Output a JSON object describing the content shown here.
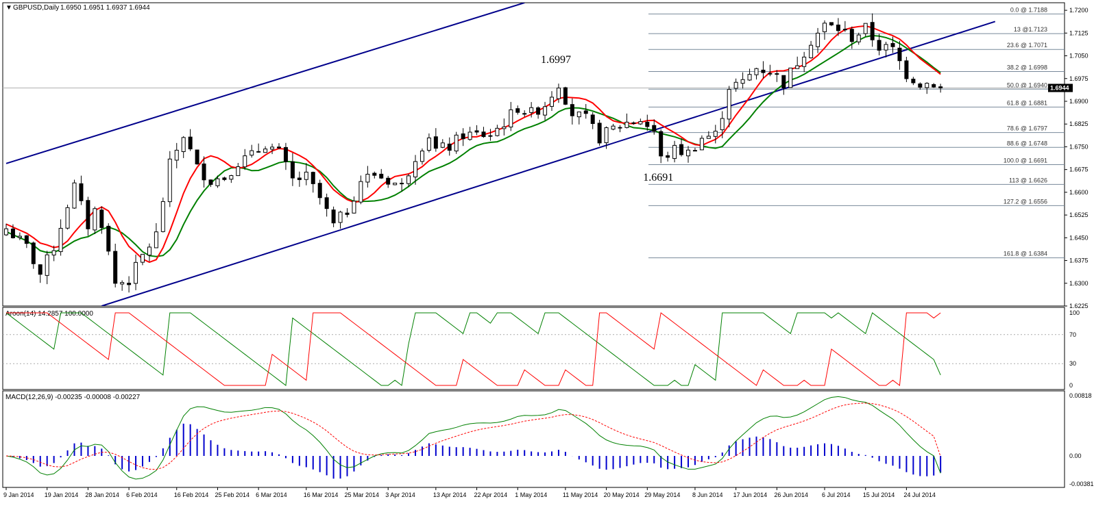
{
  "header": {
    "symbol": "GBPUSD,Daily",
    "ohlc": "1.6950 1.6951 1.6937 1.6944",
    "aroon_label": "Aroon(14) 14.2857 100.0000",
    "macd_label": "MACD(12,26,9) -0.00235 -0.00008 -0.00227"
  },
  "annotations": [
    {
      "text": "1.6997",
      "date_index": 81,
      "price": 1.7026
    },
    {
      "text": "1.6691",
      "date_index": 96,
      "price": 1.6638
    }
  ],
  "current_price_tag": "1.6944",
  "colors": {
    "channel": "#00008b",
    "ma_fast": "#ff0000",
    "ma_slow": "#008000",
    "ma_flat": "#ffff00",
    "aroon_up": "#008000",
    "aroon_down": "#ff0000",
    "macd_line": "#008000",
    "macd_signal": "#ff0000",
    "macd_hist": "#0000cd",
    "fib_line": "#778899"
  },
  "chart_data": {
    "type": "candlestick",
    "title": "GBPUSD,Daily",
    "x_tick_labels": [
      "9 Jan 2014",
      "19 Jan 2014",
      "28 Jan 2014",
      "6 Feb 2014",
      "16 Feb 2014",
      "25 Feb 2014",
      "6 Mar 2014",
      "16 Mar 2014",
      "25 Mar 2014",
      "3 Apr 2014",
      "13 Apr 2014",
      "22 Apr 2014",
      "1 May 2014",
      "11 May 2014",
      "20 May 2014",
      "29 May 2014",
      "8 Jun 2014",
      "17 Jun 2014",
      "26 Jun 2014",
      "6 Jul 2014",
      "15 Jul 2014",
      "24 Jul 2014"
    ],
    "x_tick_bar_index": [
      0,
      6,
      12,
      18,
      25,
      31,
      37,
      44,
      50,
      56,
      63,
      69,
      75,
      82,
      88,
      94,
      101,
      107,
      113,
      120,
      126,
      132
    ],
    "price_axis": {
      "ylim": [
        1.6225,
        1.7225
      ],
      "ticks": [
        "1.7200",
        "1.7125",
        "1.7050",
        "1.6975",
        "1.6900",
        "1.6825",
        "1.6750",
        "1.6675",
        "1.6600",
        "1.6525",
        "1.6450",
        "1.6375",
        "1.6300",
        "1.6225"
      ]
    },
    "fibonacci": [
      {
        "label": "0.0 @ 1.7188",
        "price": 1.7188
      },
      {
        "label": "13 @1.7123",
        "price": 1.7123
      },
      {
        "label": "23.6 @ 1.7071",
        "price": 1.7071
      },
      {
        "label": "38.2 @ 1.6998",
        "price": 1.6998
      },
      {
        "label": "50.0 @ 1.6940",
        "price": 1.694
      },
      {
        "label": "61.8 @ 1.6881",
        "price": 1.6881
      },
      {
        "label": "78.6 @ 1.6797",
        "price": 1.6797
      },
      {
        "label": "88.6 @ 1.6748",
        "price": 1.6748
      },
      {
        "label": "100.0 @ 1.6691",
        "price": 1.6691
      },
      {
        "label": "113 @ 1.6626",
        "price": 1.6626
      },
      {
        "label": "127.2 @ 1.6556",
        "price": 1.6556
      },
      {
        "label": "161.8 @ 1.6384",
        "price": 1.6384
      }
    ],
    "current_price": 1.6944,
    "channel": {
      "lower": {
        "i1": 14,
        "p1": 1.6225,
        "i2": 145,
        "p2": 1.7163
      },
      "upper": {
        "i1": 0,
        "p1": 1.6695,
        "i2": 76,
        "p2": 1.7225
      }
    },
    "close_anchors": [
      [
        0,
        1.648
      ],
      [
        3,
        1.642
      ],
      [
        5,
        1.633
      ],
      [
        7,
        1.642
      ],
      [
        9,
        1.656
      ],
      [
        10,
        1.662
      ],
      [
        12,
        1.649
      ],
      [
        13,
        1.654
      ],
      [
        14,
        1.65
      ],
      [
        16,
        1.63
      ],
      [
        18,
        1.631
      ],
      [
        20,
        1.639
      ],
      [
        22,
        1.646
      ],
      [
        24,
        1.669
      ],
      [
        26,
        1.679
      ],
      [
        28,
        1.668
      ],
      [
        30,
        1.664
      ],
      [
        32,
        1.665
      ],
      [
        34,
        1.67
      ],
      [
        36,
        1.672
      ],
      [
        38,
        1.676
      ],
      [
        40,
        1.673
      ],
      [
        42,
        1.664
      ],
      [
        44,
        1.665
      ],
      [
        46,
        1.658
      ],
      [
        48,
        1.649
      ],
      [
        50,
        1.654
      ],
      [
        52,
        1.664
      ],
      [
        54,
        1.666
      ],
      [
        56,
        1.664
      ],
      [
        58,
        1.662
      ],
      [
        60,
        1.672
      ],
      [
        62,
        1.679
      ],
      [
        63,
        1.674
      ],
      [
        65,
        1.675
      ],
      [
        67,
        1.679
      ],
      [
        69,
        1.679
      ],
      [
        71,
        1.679
      ],
      [
        73,
        1.683
      ],
      [
        75,
        1.688
      ],
      [
        77,
        1.686
      ],
      [
        79,
        1.689
      ],
      [
        81,
        1.696
      ],
      [
        83,
        1.686
      ],
      [
        85,
        1.684
      ],
      [
        87,
        1.678
      ],
      [
        89,
        1.681
      ],
      [
        91,
        1.683
      ],
      [
        93,
        1.684
      ],
      [
        95,
        1.68
      ],
      [
        96,
        1.671
      ],
      [
        98,
        1.674
      ],
      [
        100,
        1.673
      ],
      [
        102,
        1.678
      ],
      [
        104,
        1.679
      ],
      [
        105,
        1.686
      ],
      [
        106,
        1.695
      ],
      [
        108,
        1.696
      ],
      [
        110,
        1.701
      ],
      [
        112,
        1.7
      ],
      [
        114,
        1.696
      ],
      [
        116,
        1.703
      ],
      [
        118,
        1.71
      ],
      [
        120,
        1.715
      ],
      [
        122,
        1.714
      ],
      [
        124,
        1.711
      ],
      [
        126,
        1.714
      ],
      [
        128,
        1.708
      ],
      [
        130,
        1.707
      ],
      [
        132,
        1.699
      ],
      [
        134,
        1.696
      ],
      [
        136,
        1.696
      ],
      [
        137,
        1.6944
      ]
    ],
    "aroon": {
      "ylim": [
        0,
        100
      ],
      "ticks": [
        "100",
        "70",
        "30",
        "0"
      ],
      "last_up": 14.2857,
      "last_down": 100.0
    },
    "macd": {
      "ylim": [
        -0.00381,
        0.00818
      ],
      "ticks": [
        "0.00818",
        "0.00",
        "-0.00381"
      ],
      "last_main": -0.00235,
      "last_signal": -8e-05,
      "last_hist": -0.00227
    }
  }
}
